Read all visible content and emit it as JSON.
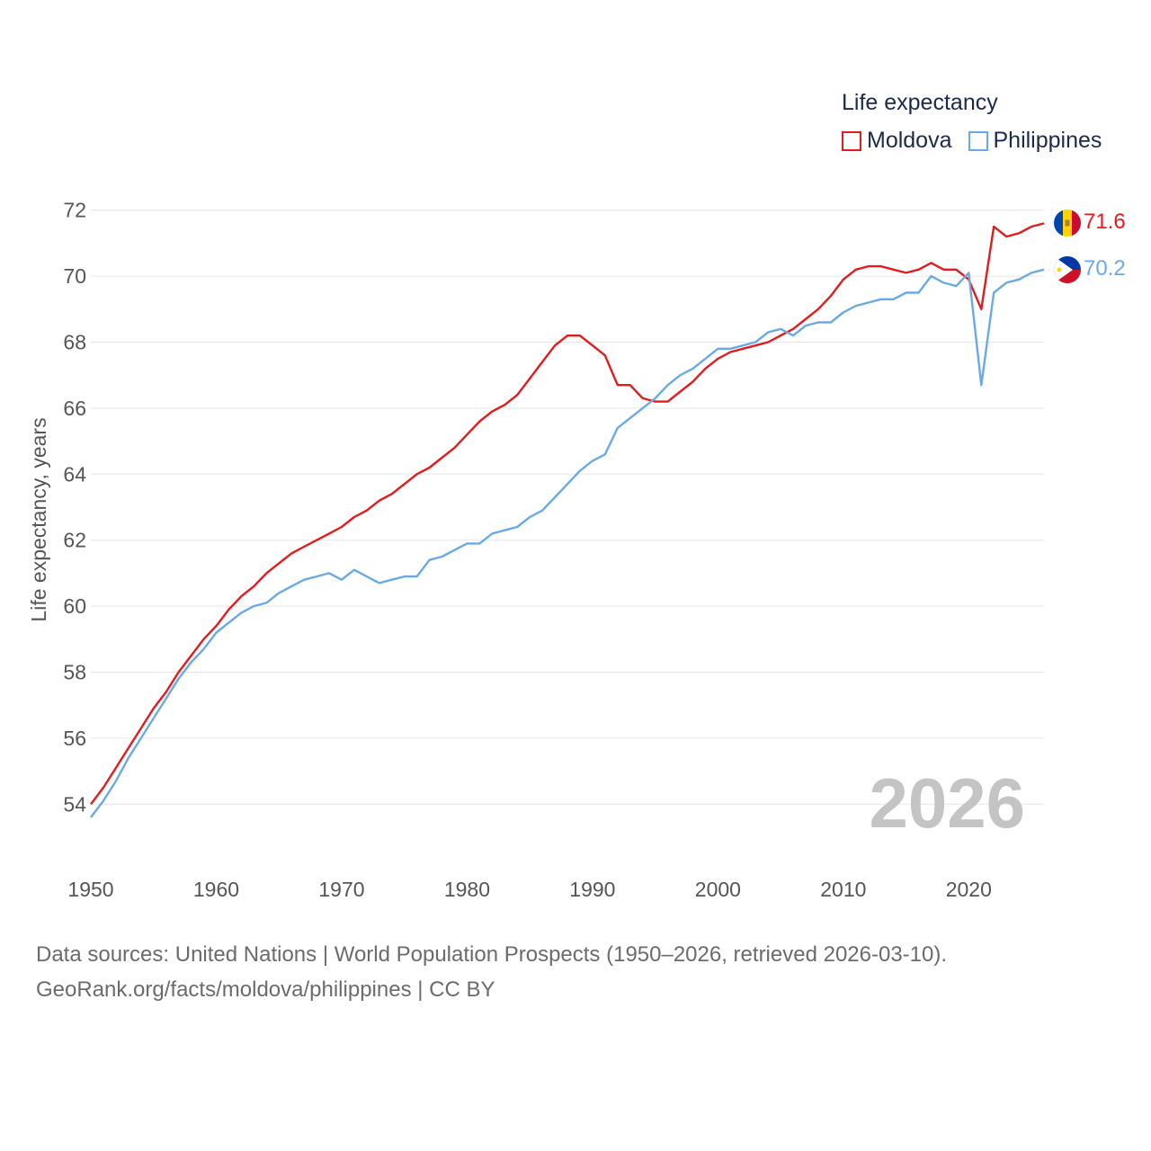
{
  "chart_data": {
    "type": "line",
    "title": "",
    "xlabel": "",
    "ylabel": "Life expectancy, years",
    "legend_title": "Life expectancy",
    "xlim": [
      1950,
      2026
    ],
    "ylim": [
      53,
      73
    ],
    "x_ticks": [
      1950,
      1960,
      1970,
      1980,
      1990,
      2000,
      2010,
      2020
    ],
    "y_ticks": [
      54,
      56,
      58,
      60,
      62,
      64,
      66,
      68,
      70,
      72
    ],
    "x": [
      1950,
      1951,
      1952,
      1953,
      1954,
      1955,
      1956,
      1957,
      1958,
      1959,
      1960,
      1961,
      1962,
      1963,
      1964,
      1965,
      1966,
      1967,
      1968,
      1969,
      1970,
      1971,
      1972,
      1973,
      1974,
      1975,
      1976,
      1977,
      1978,
      1979,
      1980,
      1981,
      1982,
      1983,
      1984,
      1985,
      1986,
      1987,
      1988,
      1989,
      1990,
      1991,
      1992,
      1993,
      1994,
      1995,
      1996,
      1997,
      1998,
      1999,
      2000,
      2001,
      2002,
      2003,
      2004,
      2005,
      2006,
      2007,
      2008,
      2009,
      2010,
      2011,
      2012,
      2013,
      2014,
      2015,
      2016,
      2017,
      2018,
      2019,
      2020,
      2021,
      2022,
      2023,
      2024,
      2025,
      2026
    ],
    "series": [
      {
        "name": "Moldova",
        "color": "#e41a1c",
        "end_label": "71.6",
        "values": [
          54.0,
          54.5,
          55.1,
          55.7,
          56.3,
          56.9,
          57.4,
          58.0,
          58.5,
          59.0,
          59.4,
          59.9,
          60.3,
          60.6,
          61.0,
          61.3,
          61.6,
          61.8,
          62.0,
          62.2,
          62.4,
          62.7,
          62.9,
          63.2,
          63.4,
          63.7,
          64.0,
          64.2,
          64.5,
          64.8,
          65.2,
          65.6,
          65.9,
          66.1,
          66.4,
          66.9,
          67.4,
          67.9,
          68.2,
          68.2,
          67.9,
          67.6,
          66.7,
          66.7,
          66.3,
          66.2,
          66.2,
          66.5,
          66.8,
          67.2,
          67.5,
          67.7,
          67.8,
          67.9,
          68.0,
          68.2,
          68.4,
          68.7,
          69.0,
          69.4,
          69.9,
          70.2,
          70.3,
          70.3,
          70.2,
          70.1,
          70.2,
          70.4,
          70.2,
          70.2,
          69.9,
          69.0,
          71.5,
          71.2,
          71.3,
          71.5,
          71.6
        ]
      },
      {
        "name": "Philippines",
        "color": "#6aaae4",
        "end_label": "70.2",
        "values": [
          53.6,
          54.1,
          54.7,
          55.4,
          56.0,
          56.6,
          57.2,
          57.8,
          58.3,
          58.7,
          59.2,
          59.5,
          59.8,
          60.0,
          60.1,
          60.4,
          60.6,
          60.8,
          60.9,
          61.0,
          60.8,
          61.1,
          60.9,
          60.7,
          60.8,
          60.9,
          60.9,
          61.4,
          61.5,
          61.7,
          61.9,
          61.9,
          62.2,
          62.3,
          62.4,
          62.7,
          62.9,
          63.3,
          63.7,
          64.1,
          64.4,
          64.6,
          65.4,
          65.7,
          66.0,
          66.3,
          66.7,
          67.0,
          67.2,
          67.5,
          67.8,
          67.8,
          67.9,
          68.0,
          68.3,
          68.4,
          68.2,
          68.5,
          68.6,
          68.6,
          68.9,
          69.1,
          69.2,
          69.3,
          69.3,
          69.5,
          69.5,
          70.0,
          69.8,
          69.7,
          70.1,
          66.7,
          69.5,
          69.8,
          69.9,
          70.1,
          70.2
        ]
      }
    ]
  },
  "watermark_year": "2026",
  "footer": {
    "line1": "Data sources: United Nations | World Population Prospects (1950–2026, retrieved 2026-03-10).",
    "line2": "GeoRank.org/facts/moldova/philippines | CC BY"
  }
}
